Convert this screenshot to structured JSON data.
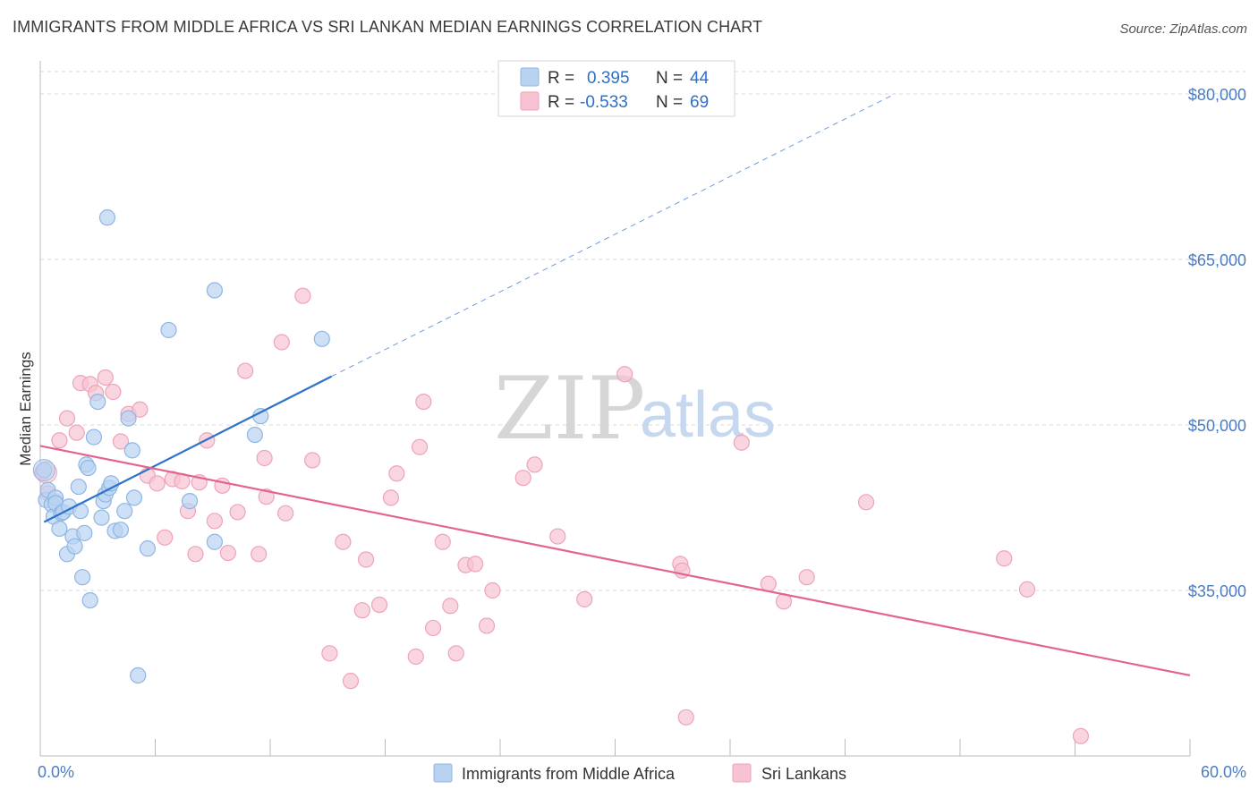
{
  "header": {
    "title": "IMMIGRANTS FROM MIDDLE AFRICA VS SRI LANKAN MEDIAN EARNINGS CORRELATION CHART",
    "source": "Source: ZipAtlas.com"
  },
  "legend_top": {
    "rows": [
      {
        "r_label": "R =",
        "r_value": "0.395",
        "n_label": "N =",
        "n_value": "44"
      },
      {
        "r_label": "R =",
        "r_value": "-0.533",
        "n_label": "N =",
        "n_value": "69"
      }
    ]
  },
  "watermark": {
    "zip": "ZIP",
    "atlas": "atlas"
  },
  "colors": {
    "blue_fill": "#b8d3f2",
    "blue_stroke": "#8fb6e3",
    "blue_line": "#2f73c9",
    "pink_fill": "#f7c3d3",
    "pink_stroke": "#eea3ba",
    "pink_line": "#e2648f",
    "tick_text": "#4a7cc4",
    "grid": "#d9d9d9"
  },
  "chart_data": {
    "type": "scatter",
    "xlabel": "",
    "ylabel": "Median Earnings",
    "xlim": [
      0,
      60
    ],
    "ylim": [
      20000,
      83000
    ],
    "x_tick_labels": [
      {
        "value": 0,
        "label": "0.0%"
      },
      {
        "value": 60,
        "label": "60.0%"
      }
    ],
    "x_minor_ticks": [
      6,
      12,
      18,
      24,
      30,
      36,
      42,
      48,
      54,
      60
    ],
    "y_ticks": [
      {
        "value": 35000,
        "label": "$35,000"
      },
      {
        "value": 50000,
        "label": "$50,000"
      },
      {
        "value": 65000,
        "label": "$65,000"
      },
      {
        "value": 80000,
        "label": "$80,000"
      }
    ],
    "grid": true,
    "legend_position": "bottom-center",
    "series": [
      {
        "name": "Immigrants from Middle Africa",
        "color": "#b8d3f2",
        "r": 0.395,
        "n": 44,
        "trend": {
          "x": [
            0.2,
            15.2
          ],
          "y": [
            41200,
            54400
          ],
          "dashed_extension": {
            "x": [
              15.2,
              44.6
            ],
            "y": [
              54400,
              80000
            ]
          }
        },
        "points": [
          [
            0.2,
            45.9
          ],
          [
            0.3,
            43.2
          ],
          [
            0.4,
            44.1
          ],
          [
            0.6,
            42.8
          ],
          [
            0.7,
            41.7
          ],
          [
            0.8,
            43.4
          ],
          [
            0.8,
            42.9
          ],
          [
            1.0,
            40.6
          ],
          [
            1.1,
            42.0
          ],
          [
            1.2,
            42.1
          ],
          [
            1.4,
            38.3
          ],
          [
            1.5,
            42.6
          ],
          [
            1.7,
            39.9
          ],
          [
            1.8,
            39.0
          ],
          [
            2.0,
            44.4
          ],
          [
            2.1,
            42.2
          ],
          [
            2.2,
            36.2
          ],
          [
            2.3,
            40.2
          ],
          [
            2.4,
            46.4
          ],
          [
            2.5,
            46.1
          ],
          [
            2.6,
            34.1
          ],
          [
            2.8,
            48.9
          ],
          [
            3.0,
            52.1
          ],
          [
            3.2,
            41.6
          ],
          [
            3.3,
            43.1
          ],
          [
            3.4,
            43.7
          ],
          [
            3.5,
            68.8
          ],
          [
            3.6,
            44.3
          ],
          [
            3.7,
            44.7
          ],
          [
            3.9,
            40.4
          ],
          [
            4.2,
            40.5
          ],
          [
            4.4,
            42.2
          ],
          [
            4.6,
            50.6
          ],
          [
            4.8,
            47.7
          ],
          [
            4.9,
            43.4
          ],
          [
            5.1,
            27.3
          ],
          [
            5.6,
            38.8
          ],
          [
            6.7,
            58.6
          ],
          [
            7.8,
            43.1
          ],
          [
            9.1,
            39.4
          ],
          [
            9.1,
            62.2
          ],
          [
            11.2,
            49.1
          ],
          [
            11.5,
            50.8
          ],
          [
            14.7,
            57.8
          ]
        ]
      },
      {
        "name": "Sri Lankans",
        "color": "#f7c3d3",
        "r": -0.533,
        "n": 69,
        "trend": {
          "x": [
            0.0,
            60.0
          ],
          "y": [
            48100,
            27300
          ]
        },
        "points": [
          [
            0.1,
            45.7
          ],
          [
            0.4,
            43.8
          ],
          [
            0.8,
            43.0
          ],
          [
            1.0,
            48.6
          ],
          [
            1.4,
            50.6
          ],
          [
            1.9,
            49.3
          ],
          [
            2.1,
            53.8
          ],
          [
            2.6,
            53.7
          ],
          [
            2.9,
            52.9
          ],
          [
            3.4,
            54.3
          ],
          [
            3.8,
            53.0
          ],
          [
            4.2,
            48.5
          ],
          [
            4.6,
            51.0
          ],
          [
            5.2,
            51.4
          ],
          [
            5.6,
            45.4
          ],
          [
            6.1,
            44.7
          ],
          [
            6.5,
            39.8
          ],
          [
            6.9,
            45.1
          ],
          [
            7.4,
            44.9
          ],
          [
            7.7,
            42.2
          ],
          [
            8.1,
            38.3
          ],
          [
            8.3,
            44.8
          ],
          [
            8.7,
            48.6
          ],
          [
            9.1,
            41.3
          ],
          [
            9.5,
            44.5
          ],
          [
            9.8,
            38.4
          ],
          [
            10.3,
            42.1
          ],
          [
            10.7,
            54.9
          ],
          [
            11.4,
            38.3
          ],
          [
            11.7,
            47.0
          ],
          [
            11.8,
            43.5
          ],
          [
            12.6,
            57.5
          ],
          [
            12.8,
            42.0
          ],
          [
            13.7,
            61.7
          ],
          [
            14.2,
            46.8
          ],
          [
            15.1,
            29.3
          ],
          [
            15.8,
            39.4
          ],
          [
            16.2,
            26.8
          ],
          [
            16.8,
            33.2
          ],
          [
            17.0,
            37.8
          ],
          [
            17.7,
            33.7
          ],
          [
            18.3,
            43.4
          ],
          [
            18.6,
            45.6
          ],
          [
            19.6,
            29.0
          ],
          [
            19.8,
            48.0
          ],
          [
            20.0,
            52.1
          ],
          [
            20.5,
            31.6
          ],
          [
            21.0,
            39.4
          ],
          [
            21.4,
            33.6
          ],
          [
            21.7,
            29.3
          ],
          [
            22.2,
            37.3
          ],
          [
            22.7,
            37.4
          ],
          [
            23.3,
            31.8
          ],
          [
            23.6,
            35.0
          ],
          [
            25.2,
            45.2
          ],
          [
            25.8,
            46.4
          ],
          [
            27.0,
            39.9
          ],
          [
            28.4,
            34.2
          ],
          [
            30.5,
            54.6
          ],
          [
            33.4,
            37.4
          ],
          [
            33.5,
            36.8
          ],
          [
            33.7,
            23.5
          ],
          [
            36.6,
            48.4
          ],
          [
            38.0,
            35.6
          ],
          [
            38.8,
            34.0
          ],
          [
            40.0,
            36.2
          ],
          [
            43.1,
            43.0
          ],
          [
            50.3,
            37.9
          ],
          [
            51.5,
            35.1
          ],
          [
            54.3,
            21.8
          ]
        ]
      }
    ]
  }
}
